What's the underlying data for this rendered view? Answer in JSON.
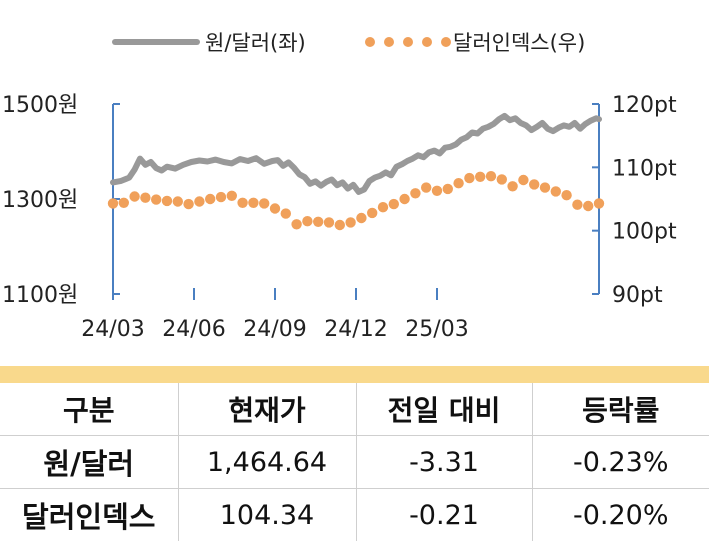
{
  "chart_data": {
    "type": "line",
    "legend": [
      {
        "name": "원/달러(좌)",
        "style": "line",
        "color": "#999999"
      },
      {
        "name": "달러인덱스(우)",
        "style": "dots",
        "color": "#f0a05a"
      }
    ],
    "legend_position": "top",
    "x_ticks": [
      "24/03",
      "24/06",
      "24/09",
      "24/12",
      "25/03"
    ],
    "y_left": {
      "ticks": [
        "1500원",
        "1300원",
        "1100원"
      ],
      "range": [
        1100,
        1500
      ]
    },
    "y_right": {
      "ticks": [
        "120pt",
        "110pt",
        "100pt",
        "90pt"
      ],
      "range": [
        90,
        120
      ]
    },
    "axis_color": "#4a7fc1",
    "series": [
      {
        "name": "원/달러(좌)",
        "axis": "left",
        "color": "#999999",
        "x_months": [
          0,
          0.3,
          0.6,
          0.8,
          1.0,
          1.2,
          1.4,
          1.6,
          1.8,
          2.0,
          2.3,
          2.6,
          2.9,
          3.2,
          3.5,
          3.8,
          4.1,
          4.4,
          4.7,
          5.0,
          5.3,
          5.6,
          5.9,
          6.1,
          6.3,
          6.5,
          6.7,
          6.9,
          7.1,
          7.3,
          7.5,
          7.7,
          7.9,
          8.1,
          8.3,
          8.5,
          8.7,
          8.9,
          9.1,
          9.3,
          9.5,
          9.7,
          9.9,
          10.1,
          10.3,
          10.5,
          10.7,
          10.9,
          11.1,
          11.3,
          11.5,
          11.7,
          11.9,
          12.1,
          12.3,
          12.5,
          12.7,
          12.9,
          13.1,
          13.3,
          13.5,
          13.7,
          13.9,
          14.1,
          14.3,
          14.5,
          14.7,
          14.9,
          15.1,
          15.3,
          15.5,
          15.7,
          15.9,
          16.1,
          16.3,
          16.5,
          16.7,
          16.9,
          17.1,
          17.3,
          17.5,
          17.7,
          17.9,
          18.0
        ],
        "values": [
          1335,
          1338,
          1345,
          1362,
          1385,
          1372,
          1378,
          1365,
          1360,
          1368,
          1364,
          1372,
          1378,
          1381,
          1379,
          1383,
          1378,
          1375,
          1384,
          1380,
          1386,
          1374,
          1380,
          1382,
          1370,
          1377,
          1366,
          1352,
          1346,
          1332,
          1337,
          1328,
          1336,
          1341,
          1329,
          1335,
          1322,
          1330,
          1315,
          1320,
          1338,
          1345,
          1349,
          1356,
          1350,
          1368,
          1373,
          1380,
          1385,
          1392,
          1388,
          1398,
          1402,
          1396,
          1408,
          1410,
          1415,
          1425,
          1430,
          1440,
          1438,
          1448,
          1452,
          1458,
          1468,
          1475,
          1466,
          1470,
          1460,
          1455,
          1445,
          1452,
          1460,
          1448,
          1443,
          1450,
          1455,
          1452,
          1460,
          1448,
          1458,
          1465,
          1470,
          1468
        ]
      },
      {
        "name": "달러인덱스(우)",
        "axis": "right",
        "color": "#f0a05a",
        "x_months": [
          0,
          0.4,
          0.8,
          1.2,
          1.6,
          2.0,
          2.4,
          2.8,
          3.2,
          3.6,
          4.0,
          4.4,
          4.8,
          5.2,
          5.6,
          6.0,
          6.4,
          6.8,
          7.2,
          7.6,
          8.0,
          8.4,
          8.8,
          9.2,
          9.6,
          10.0,
          10.4,
          10.8,
          11.2,
          11.6,
          12.0,
          12.4,
          12.8,
          13.2,
          13.6,
          14.0,
          14.4,
          14.8,
          15.2,
          15.6,
          16.0,
          16.4,
          16.8,
          17.2,
          17.6,
          18.0
        ],
        "values": [
          104.3,
          104.4,
          105.4,
          105.2,
          104.9,
          104.7,
          104.6,
          104.2,
          104.6,
          105.0,
          105.3,
          105.5,
          104.4,
          104.4,
          104.3,
          103.5,
          102.7,
          101.0,
          101.5,
          101.4,
          101.3,
          100.9,
          101.3,
          102.0,
          102.8,
          103.7,
          104.2,
          105.0,
          105.9,
          106.8,
          106.3,
          106.6,
          107.5,
          108.3,
          108.5,
          108.6,
          108.1,
          107.0,
          108.0,
          107.3,
          106.8,
          106.2,
          105.6,
          104.1,
          103.9,
          104.3
        ]
      }
    ]
  },
  "table": {
    "headers": [
      "구분",
      "현재가",
      "전일 대비",
      "등락률"
    ],
    "rows": [
      [
        "원/달러",
        "1,464.64",
        "-3.31",
        "-0.23%"
      ],
      [
        "달러인덱스",
        "104.34",
        "-0.21",
        "-0.20%"
      ]
    ]
  }
}
